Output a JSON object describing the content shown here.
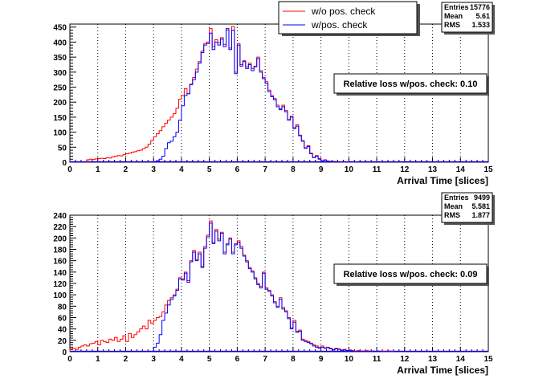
{
  "legend": {
    "entries": [
      {
        "label": "w/o pos. check",
        "color": "#ff0000"
      },
      {
        "label": "w/pos. check",
        "color": "#0000ff"
      }
    ]
  },
  "chart_data": [
    {
      "type": "histogram",
      "xlabel": "Arrival Time [slices]",
      "xlim": [
        0,
        15
      ],
      "ylim": [
        0,
        460
      ],
      "x_ticks": [
        0,
        1,
        2,
        3,
        4,
        5,
        6,
        7,
        8,
        9,
        10,
        11,
        12,
        13,
        14,
        15
      ],
      "y_ticks": [
        0,
        50,
        100,
        150,
        200,
        250,
        300,
        350,
        400,
        450
      ],
      "grid": "vertical dotted",
      "stats": {
        "Entries": "15776",
        "Mean": "5.61",
        "RMS": "1.533"
      },
      "annotation": "Relative loss w/pos. check: 0.10",
      "bin_width": 0.1,
      "series": [
        {
          "name": "w/o pos. check",
          "color": "#ff0000",
          "x": [
            0.6,
            0.7,
            0.8,
            0.9,
            1.0,
            1.1,
            1.2,
            1.3,
            1.4,
            1.5,
            1.6,
            1.7,
            1.8,
            1.9,
            2.0,
            2.1,
            2.2,
            2.3,
            2.4,
            2.5,
            2.6,
            2.7,
            2.8,
            2.9,
            3.0,
            3.1,
            3.2,
            3.3,
            3.4,
            3.5,
            3.6,
            3.7,
            3.8,
            3.9,
            4.0,
            4.1,
            4.2,
            4.3,
            4.4,
            4.5,
            4.6,
            4.7,
            4.8,
            4.9,
            5.0,
            5.1,
            5.2,
            5.3,
            5.4,
            5.5,
            5.6,
            5.7,
            5.8,
            5.9,
            6.0,
            6.1,
            6.2,
            6.3,
            6.4,
            6.5,
            6.6,
            6.7,
            6.8,
            6.9,
            7.0,
            7.1,
            7.2,
            7.3,
            7.4,
            7.5,
            7.6,
            7.7,
            7.8,
            7.9,
            8.0,
            8.1,
            8.2,
            8.3,
            8.4,
            8.5,
            8.6,
            8.7,
            8.8,
            8.9,
            9.0,
            9.1,
            9.2,
            9.3,
            9.4,
            9.5,
            9.6,
            9.7,
            9.8,
            9.9,
            10.0,
            10.1,
            10.2,
            10.3
          ],
          "values": [
            8,
            10,
            9,
            11,
            12,
            13,
            12,
            15,
            14,
            18,
            20,
            22,
            21,
            25,
            28,
            30,
            33,
            35,
            38,
            40,
            45,
            50,
            60,
            72,
            85,
            95,
            105,
            118,
            130,
            140,
            150,
            162,
            180,
            210,
            222,
            245,
            228,
            260,
            282,
            310,
            335,
            370,
            395,
            400,
            445,
            385,
            408,
            398,
            415,
            392,
            440,
            380,
            452,
            300,
            395,
            325,
            338,
            318,
            330,
            312,
            320,
            350,
            305,
            282,
            268,
            240,
            222,
            212,
            190,
            178,
            190,
            172,
            142,
            153,
            115,
            125,
            90,
            72,
            48,
            55,
            30,
            16,
            22,
            12,
            5,
            8,
            4,
            3,
            2,
            2,
            1,
            1,
            0,
            1,
            0,
            0,
            1,
            0
          ]
        },
        {
          "name": "w/pos. check",
          "color": "#0000ff",
          "x": [
            3.0,
            3.1,
            3.2,
            3.3,
            3.4,
            3.5,
            3.6,
            3.7,
            3.8,
            3.9,
            4.0,
            4.1,
            4.2,
            4.3,
            4.4,
            4.5,
            4.6,
            4.7,
            4.8,
            4.9,
            5.0,
            5.1,
            5.2,
            5.3,
            5.4,
            5.5,
            5.6,
            5.7,
            5.8,
            5.9,
            6.0,
            6.1,
            6.2,
            6.3,
            6.4,
            6.5,
            6.6,
            6.7,
            6.8,
            6.9,
            7.0,
            7.1,
            7.2,
            7.3,
            7.4,
            7.5,
            7.6,
            7.7,
            7.8,
            7.9,
            8.0,
            8.1,
            8.2,
            8.3,
            8.4,
            8.5,
            8.6,
            8.7,
            8.8,
            8.9,
            9.0,
            9.1,
            9.2,
            9.3,
            9.4,
            9.5,
            9.6,
            9.7,
            9.8,
            9.9,
            10.0,
            10.1,
            10.2,
            10.3
          ],
          "values": [
            2,
            5,
            10,
            20,
            45,
            65,
            70,
            85,
            100,
            140,
            188,
            222,
            228,
            258,
            275,
            300,
            330,
            365,
            390,
            395,
            430,
            375,
            400,
            390,
            410,
            385,
            445,
            375,
            440,
            295,
            390,
            320,
            335,
            312,
            325,
            305,
            318,
            345,
            300,
            278,
            262,
            235,
            218,
            208,
            185,
            175,
            185,
            168,
            140,
            150,
            112,
            120,
            88,
            70,
            46,
            52,
            28,
            15,
            20,
            10,
            4,
            7,
            3,
            2,
            2,
            1,
            1,
            0,
            1,
            0,
            0,
            1,
            0,
            0
          ]
        }
      ]
    },
    {
      "type": "histogram",
      "xlabel": "Arrival Time [slices]",
      "xlim": [
        0,
        15
      ],
      "ylim": [
        0,
        240
      ],
      "x_ticks": [
        0,
        1,
        2,
        3,
        4,
        5,
        6,
        7,
        8,
        9,
        10,
        11,
        12,
        13,
        14,
        15
      ],
      "y_ticks": [
        0,
        20,
        40,
        60,
        80,
        100,
        120,
        140,
        160,
        180,
        200,
        220,
        240
      ],
      "grid": "vertical dotted",
      "stats": {
        "Entries": "9499",
        "Mean": "5.581",
        "RMS": "1.877"
      },
      "annotation": "Relative loss w/pos. check: 0.09",
      "bin_width": 0.1,
      "series": [
        {
          "name": "w/o pos. check",
          "color": "#ff0000",
          "x": [
            0.0,
            0.1,
            0.2,
            0.3,
            0.4,
            0.5,
            0.6,
            0.7,
            0.8,
            0.9,
            1.0,
            1.1,
            1.2,
            1.3,
            1.4,
            1.5,
            1.6,
            1.7,
            1.8,
            1.9,
            2.0,
            2.1,
            2.2,
            2.3,
            2.4,
            2.5,
            2.6,
            2.7,
            2.8,
            2.9,
            3.0,
            3.1,
            3.2,
            3.3,
            3.4,
            3.5,
            3.6,
            3.7,
            3.8,
            3.9,
            4.0,
            4.1,
            4.2,
            4.3,
            4.4,
            4.5,
            4.6,
            4.7,
            4.8,
            4.9,
            5.0,
            5.1,
            5.2,
            5.3,
            5.4,
            5.5,
            5.6,
            5.7,
            5.8,
            5.9,
            6.0,
            6.1,
            6.2,
            6.3,
            6.4,
            6.5,
            6.6,
            6.7,
            6.8,
            6.9,
            7.0,
            7.1,
            7.2,
            7.3,
            7.4,
            7.5,
            7.6,
            7.7,
            7.8,
            7.9,
            8.0,
            8.1,
            8.2,
            8.3,
            8.4,
            8.5,
            8.6,
            8.7,
            8.8,
            8.9,
            9.0,
            9.1,
            9.2,
            9.3,
            9.4,
            9.5,
            9.6,
            9.7,
            9.8,
            9.9,
            10.0,
            10.1,
            10.2,
            10.3,
            10.4,
            10.5,
            10.6,
            10.7,
            10.8,
            10.9,
            11.0,
            11.1,
            11.2,
            11.3,
            11.4,
            11.5,
            11.6,
            11.7,
            11.8,
            11.9
          ],
          "values": [
            5,
            6,
            4,
            8,
            10,
            12,
            10,
            14,
            15,
            18,
            12,
            20,
            18,
            16,
            22,
            20,
            25,
            18,
            22,
            28,
            18,
            32,
            25,
            30,
            35,
            40,
            45,
            40,
            55,
            50,
            55,
            60,
            62,
            70,
            82,
            90,
            95,
            100,
            110,
            130,
            128,
            140,
            125,
            160,
            178,
            162,
            175,
            150,
            185,
            205,
            230,
            192,
            215,
            198,
            210,
            175,
            190,
            200,
            175,
            190,
            195,
            185,
            170,
            160,
            148,
            142,
            130,
            120,
            115,
            140,
            112,
            108,
            100,
            88,
            80,
            95,
            78,
            72,
            60,
            42,
            55,
            36,
            38,
            22,
            20,
            18,
            15,
            12,
            10,
            8,
            10,
            7,
            8,
            6,
            4,
            6,
            5,
            3,
            4,
            2,
            3,
            2,
            1,
            2,
            1,
            1,
            2,
            0,
            1,
            0,
            1,
            0,
            1,
            0,
            0,
            1,
            0,
            0,
            0,
            0
          ]
        },
        {
          "name": "w/pos. check",
          "color": "#0000ff",
          "x": [
            2.9,
            3.0,
            3.1,
            3.2,
            3.3,
            3.4,
            3.5,
            3.6,
            3.7,
            3.8,
            3.9,
            4.0,
            4.1,
            4.2,
            4.3,
            4.4,
            4.5,
            4.6,
            4.7,
            4.8,
            4.9,
            5.0,
            5.1,
            5.2,
            5.3,
            5.4,
            5.5,
            5.6,
            5.7,
            5.8,
            5.9,
            6.0,
            6.1,
            6.2,
            6.3,
            6.4,
            6.5,
            6.6,
            6.7,
            6.8,
            6.9,
            7.0,
            7.1,
            7.2,
            7.3,
            7.4,
            7.5,
            7.6,
            7.7,
            7.8,
            7.9,
            8.0,
            8.1,
            8.2,
            8.3,
            8.4,
            8.5,
            8.6,
            8.7,
            8.8,
            8.9,
            9.0,
            9.1,
            9.2,
            9.3,
            9.4,
            9.5,
            9.6,
            9.7,
            9.8,
            9.9,
            10.0,
            10.1,
            10.2,
            10.3,
            10.4,
            10.5,
            10.6,
            10.7,
            10.8,
            10.9,
            11.0,
            11.1,
            11.2,
            11.3,
            11.4,
            11.5,
            11.6,
            11.7,
            11.8,
            11.9
          ],
          "values": [
            0,
            8,
            15,
            30,
            55,
            68,
            82,
            92,
            98,
            108,
            128,
            126,
            138,
            122,
            158,
            175,
            160,
            172,
            148,
            182,
            202,
            226,
            190,
            212,
            195,
            208,
            172,
            188,
            198,
            172,
            188,
            192,
            182,
            168,
            158,
            146,
            140,
            128,
            118,
            112,
            138,
            110,
            106,
            98,
            86,
            78,
            92,
            75,
            70,
            58,
            40,
            52,
            34,
            36,
            20,
            18,
            16,
            14,
            10,
            8,
            6,
            8,
            6,
            7,
            5,
            3,
            5,
            4,
            2,
            3,
            2,
            2,
            1,
            0,
            1,
            1,
            1,
            0,
            0,
            1,
            0,
            1,
            0,
            0,
            0,
            1,
            0,
            0,
            0,
            0,
            0
          ]
        }
      ]
    }
  ]
}
